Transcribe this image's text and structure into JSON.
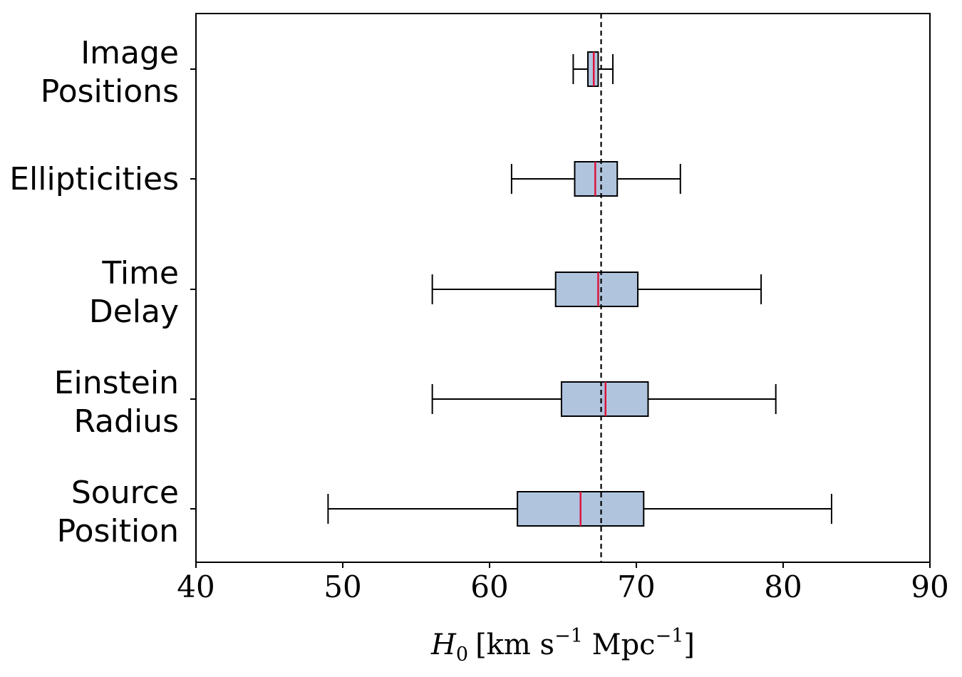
{
  "chart_data": {
    "type": "boxplot",
    "orientation": "horizontal",
    "title": "",
    "xlabel": {
      "symbol": "H",
      "subscript": "0",
      "units_before": "[km s",
      "exp1": "−1",
      "units_middle": " Mpc",
      "exp2": "−1",
      "units_after": "]"
    },
    "ylabel": "",
    "xlim": [
      40,
      90
    ],
    "xticks": [
      "40",
      "50",
      "60",
      "70",
      "80",
      "90"
    ],
    "reference_line": {
      "x": 67.6,
      "style": "dashed",
      "color": "#000000"
    },
    "categories": [
      {
        "label": [
          "Image",
          "Positions"
        ],
        "whisker_low": 65.7,
        "q1": 66.7,
        "median": 67.1,
        "q3": 67.4,
        "whisker_high": 68.4
      },
      {
        "label": [
          "Ellipticities"
        ],
        "whisker_low": 61.5,
        "q1": 65.8,
        "median": 67.2,
        "q3": 68.7,
        "whisker_high": 73.0
      },
      {
        "label": [
          "Time",
          "Delay"
        ],
        "whisker_low": 56.1,
        "q1": 64.5,
        "median": 67.4,
        "q3": 70.1,
        "whisker_high": 78.5
      },
      {
        "label": [
          "Einstein",
          "Radius"
        ],
        "whisker_low": 56.1,
        "q1": 64.9,
        "median": 67.9,
        "q3": 70.8,
        "whisker_high": 79.5
      },
      {
        "label": [
          "Source",
          "Position"
        ],
        "whisker_low": 49.0,
        "q1": 61.9,
        "median": 66.2,
        "q3": 70.5,
        "whisker_high": 83.3
      }
    ],
    "colors": {
      "box_fill": "#b0c4de",
      "median": "#dc143c",
      "line": "#000000"
    },
    "grid": false,
    "legend": "none"
  }
}
